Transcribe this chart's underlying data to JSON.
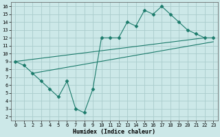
{
  "background_color": "#cce8e8",
  "grid_color": "#aacccc",
  "line_color": "#1a7a6a",
  "xlabel": "Humidex (Indice chaleur)",
  "xlim": [
    -0.5,
    23.5
  ],
  "ylim": [
    1.5,
    16.5
  ],
  "xticks": [
    0,
    1,
    2,
    3,
    4,
    5,
    6,
    7,
    8,
    9,
    10,
    11,
    12,
    13,
    14,
    15,
    16,
    17,
    18,
    19,
    20,
    21,
    22,
    23
  ],
  "yticks": [
    2,
    3,
    4,
    5,
    6,
    7,
    8,
    9,
    10,
    11,
    12,
    13,
    14,
    15,
    16
  ],
  "zigzag_x": [
    0,
    1,
    2,
    3,
    4,
    5,
    6,
    7,
    8,
    9,
    10,
    11,
    12,
    13,
    14,
    15,
    16,
    17,
    18,
    19,
    20,
    21,
    22,
    23
  ],
  "zigzag_y": [
    9.0,
    8.5,
    7.5,
    6.5,
    5.5,
    4.5,
    6.5,
    3.0,
    2.5,
    5.5,
    12.0,
    12.0,
    12.0,
    14.0,
    13.5,
    15.5,
    15.0,
    16.0,
    15.0,
    14.0,
    13.0,
    12.5,
    12.0,
    12.0
  ],
  "upper_line_x": [
    0,
    22
  ],
  "upper_line_y": [
    9.0,
    12.0
  ],
  "lower_line_x": [
    2,
    23
  ],
  "lower_line_y": [
    7.5,
    11.5
  ],
  "marker": "D",
  "marker_size": 2.5,
  "line_width": 0.8,
  "tick_fontsize": 5.0,
  "xlabel_fontsize": 6.0
}
